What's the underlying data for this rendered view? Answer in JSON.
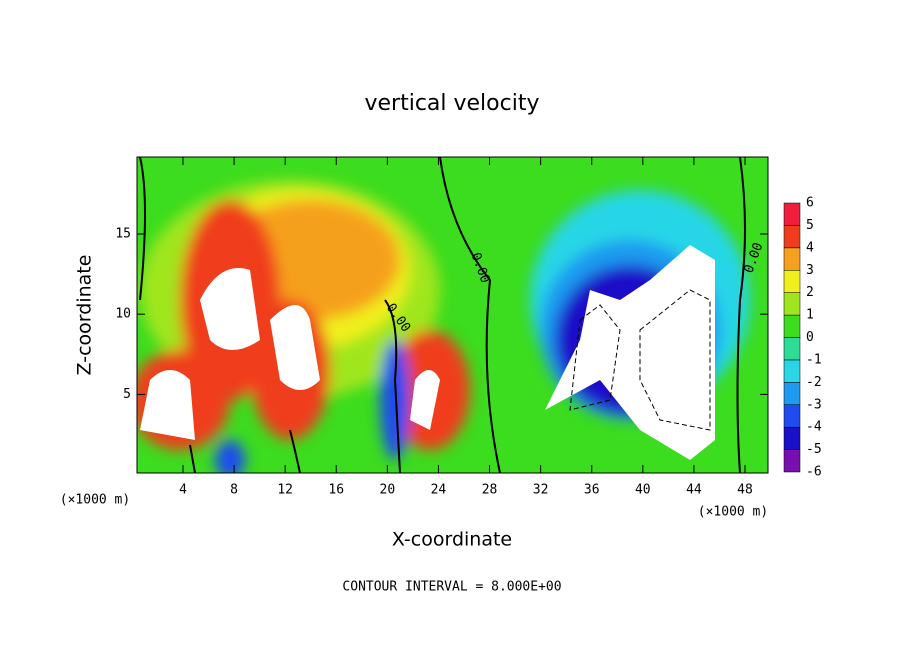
{
  "chart_data": {
    "type": "contour",
    "title": "vertical velocity",
    "x_label": "X-coordinate",
    "y_label": "Z-coordinate",
    "x_unit_label": "(×1000 m)",
    "footer": "CONTOUR INTERVAL = 8.000E+00",
    "contour_labels": [
      "0.00",
      "0.00",
      "0.00"
    ],
    "xlim": [
      0.4,
      49.8
    ],
    "xticks": [
      4,
      8,
      12,
      16,
      20,
      24,
      28,
      32,
      36,
      40,
      44,
      48
    ],
    "ylim": [
      0.1,
      19.8
    ],
    "yticks": [
      5,
      10,
      15
    ],
    "colorbar": {
      "levels": [
        -6,
        -5,
        -4,
        -3,
        -2,
        -1,
        0,
        1,
        2,
        3,
        4,
        5,
        6
      ],
      "colors": [
        "#7a0fb0",
        "#1a10c8",
        "#1e4cf0",
        "#1e9af0",
        "#28d6e6",
        "#2edc96",
        "#3cdc1e",
        "#a0e61e",
        "#f0f01e",
        "#f5a01e",
        "#f03c1e",
        "#f01e3c"
      ]
    }
  }
}
